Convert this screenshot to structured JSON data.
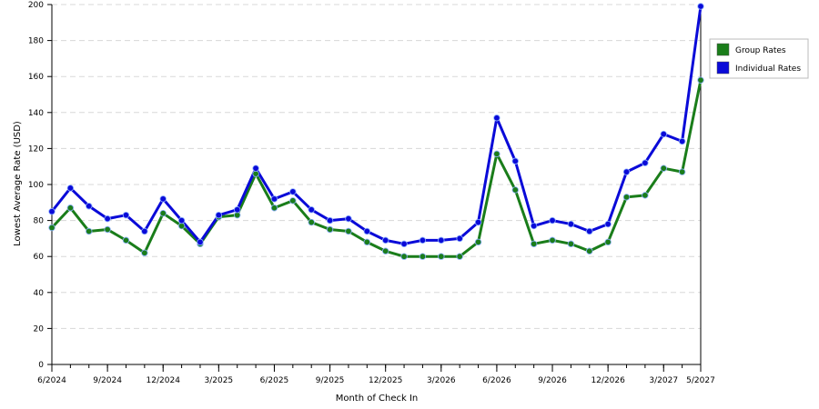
{
  "chart_data": {
    "type": "line",
    "title": "",
    "xlabel": "Month of Check In",
    "ylabel": "Lowest Average Rate (USD)",
    "ylim": [
      0,
      200
    ],
    "yticks": [
      0,
      20,
      40,
      60,
      80,
      100,
      120,
      140,
      160,
      180,
      200
    ],
    "x_tick_labels": [
      "6/2024",
      "9/2024",
      "12/2024",
      "3/2025",
      "6/2025",
      "9/2025",
      "12/2025",
      "3/2026",
      "6/2026",
      "9/2026",
      "12/2026",
      "3/2027",
      "5/2027"
    ],
    "x_tick_positions": [
      0,
      3,
      6,
      9,
      12,
      15,
      18,
      21,
      24,
      27,
      30,
      33,
      35
    ],
    "x_range": [
      0,
      35
    ],
    "grid": true,
    "legend_position": "right",
    "series": [
      {
        "name": "Group Rates",
        "color": "#1a7d1a",
        "values": [
          76,
          87,
          74,
          75,
          69,
          62,
          84,
          77,
          67,
          82,
          83,
          106,
          87,
          91,
          79,
          75,
          74,
          68,
          63,
          60,
          60,
          60,
          60,
          68,
          117,
          97,
          67,
          69,
          67,
          63,
          68,
          93,
          94,
          109,
          107,
          158
        ]
      },
      {
        "name": "Individual Rates",
        "color": "#0a0ad8",
        "values": [
          85,
          98,
          88,
          81,
          83,
          74,
          92,
          80,
          68,
          83,
          86,
          109,
          92,
          96,
          86,
          80,
          81,
          74,
          69,
          67,
          69,
          69,
          70,
          79,
          137,
          113,
          77,
          80,
          78,
          74,
          78,
          107,
          112,
          128,
          124,
          199
        ]
      }
    ]
  }
}
